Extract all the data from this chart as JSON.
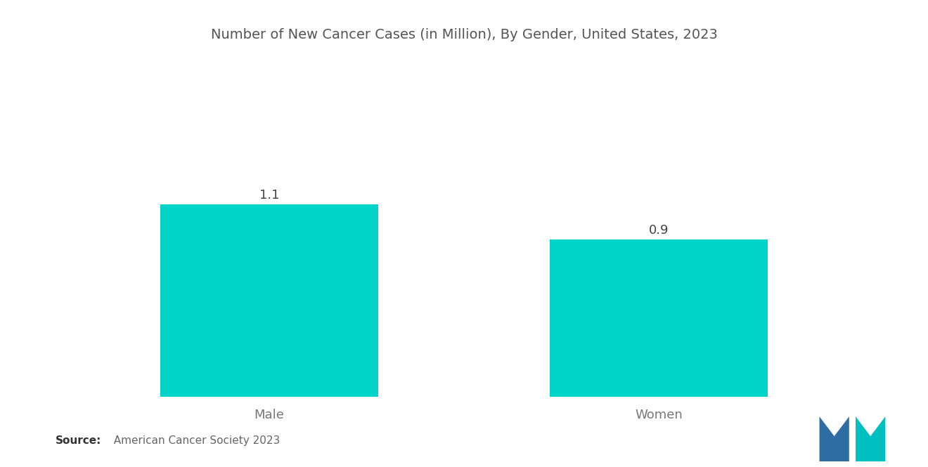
{
  "title": "Number of New Cancer Cases (in Million), By Gender, United States, 2023",
  "categories": [
    "Male",
    "Women"
  ],
  "values": [
    1.1,
    0.9
  ],
  "bar_color": "#00D4C8",
  "background_color": "#ffffff",
  "title_color": "#555555",
  "label_color": "#777777",
  "value_color": "#444444",
  "title_fontsize": 14,
  "label_fontsize": 13,
  "value_fontsize": 13,
  "source_fontsize": 11,
  "ylim": [
    0,
    1.6
  ],
  "bar_width": 0.28
}
